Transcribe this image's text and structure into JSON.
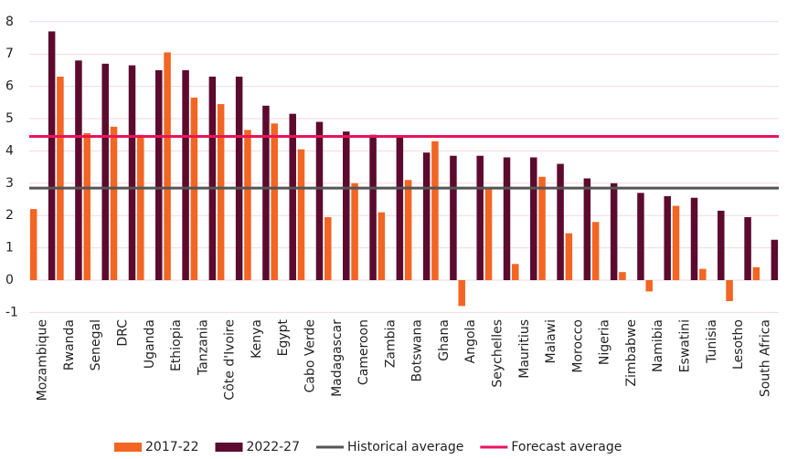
{
  "chart_data": {
    "type": "bar",
    "categories": [
      "Mozambique",
      "Rwanda",
      "Senegal",
      "DRC",
      "Uganda",
      "Ethiopia",
      "Tanzania",
      "Côte d'Ivoire",
      "Kenya",
      "Egypt",
      "Cabo Verde",
      "Madagascar",
      "Cameroon",
      "Zambia",
      "Botswana",
      "Ghana",
      "Angola",
      "Seychelles",
      "Mauritius",
      "Malawi",
      "Morocco",
      "Nigeria",
      "Zimbabwe",
      "Namibia",
      "Eswatini",
      "Tunisia",
      "Lesotho",
      "South Africa"
    ],
    "series": [
      {
        "name": "2017-22",
        "color": "#f26522",
        "values": [
          2.2,
          6.3,
          4.55,
          4.75,
          4.5,
          7.05,
          5.65,
          5.45,
          4.65,
          4.85,
          4.05,
          1.95,
          3.0,
          2.1,
          3.1,
          4.3,
          -0.8,
          2.85,
          0.5,
          3.2,
          1.45,
          1.8,
          0.25,
          -0.35,
          2.3,
          0.35,
          -0.65,
          0.4
        ]
      },
      {
        "name": "2022-27",
        "color": "#5c0a2e",
        "values": [
          7.7,
          6.8,
          6.7,
          6.65,
          6.5,
          6.5,
          6.3,
          6.3,
          5.4,
          5.15,
          4.9,
          4.6,
          4.5,
          4.45,
          3.95,
          3.85,
          3.85,
          3.8,
          3.8,
          3.6,
          3.15,
          3.0,
          2.7,
          2.6,
          2.55,
          2.15,
          1.95,
          1.25
        ]
      }
    ],
    "lines": [
      {
        "name": "Historical average",
        "color": "#555555",
        "value": 2.85
      },
      {
        "name": "Forecast average",
        "color": "#e8145a",
        "value": 4.45
      }
    ],
    "ylim": [
      -1,
      8.3
    ],
    "yticks": [
      -1,
      0,
      1,
      2,
      3,
      4,
      5,
      6,
      7,
      8
    ],
    "grid": true
  }
}
